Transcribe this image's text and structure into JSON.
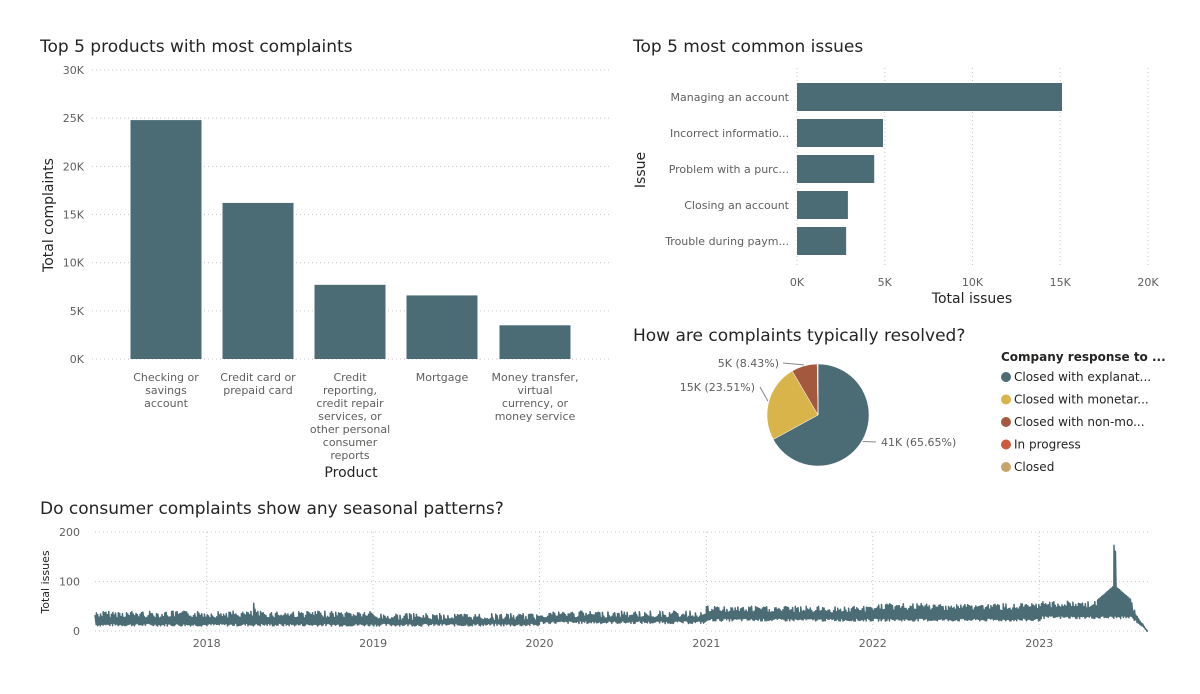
{
  "charts": {
    "products": {
      "title": "Top 5 products with most complaints",
      "xlabel": "Product",
      "ylabel": "Total complaints",
      "yticks": [
        "30K",
        "25K",
        "20K",
        "15K",
        "10K",
        "5K",
        "0K"
      ],
      "category_lines": [
        [
          "Checking or",
          "savings",
          "account"
        ],
        [
          "Credit card or",
          "prepaid card"
        ],
        [
          "Credit",
          "reporting,",
          "credit repair",
          "services, or",
          "other personal",
          "consumer",
          "reports"
        ],
        [
          "Mortgage"
        ],
        [
          "Money transfer,",
          "virtual",
          "currency, or",
          "money service"
        ]
      ],
      "bar_color": "#4c6c75"
    },
    "issues": {
      "title": "Top 5 most common issues",
      "xlabel": "Total issues",
      "ylabel": "Issue",
      "xticks": [
        "0K",
        "5K",
        "10K",
        "15K",
        "20K"
      ],
      "bar_color": "#4c6c75"
    },
    "resolution": {
      "title": "How are complaints typically resolved?",
      "legend_title": "Company response to ...",
      "legend_items": [
        {
          "label": "Closed with explanat...",
          "color": "#4c6c75"
        },
        {
          "label": "Closed with monetar...",
          "color": "#d9b44a"
        },
        {
          "label": "Closed with non-mo...",
          "color": "#a4583e"
        },
        {
          "label": "In progress",
          "color": "#cc5a3d"
        },
        {
          "label": "Closed",
          "color": "#c7a56a"
        }
      ],
      "slice_labels": [
        "41K (65.65%)",
        "15K (23.51%)",
        "5K (8.43%)"
      ]
    },
    "seasonal": {
      "title": "Do consumer complaints show any seasonal patterns?",
      "ylabel": "Total issues",
      "yticks": [
        "200",
        "100",
        "0"
      ],
      "xticks": [
        "2018",
        "2019",
        "2020",
        "2021",
        "2022",
        "2023"
      ],
      "line_color": "#4c6c75"
    }
  },
  "chart_data": [
    {
      "type": "bar",
      "title": "Top 5 products with most complaints",
      "categories": [
        "Checking or savings account",
        "Credit card or prepaid card",
        "Credit reporting, credit repair services, or other personal consumer reports",
        "Mortgage",
        "Money transfer, virtual currency, or money service"
      ],
      "values": [
        24800,
        16200,
        7700,
        6600,
        3500
      ],
      "xlabel": "Product",
      "ylabel": "Total complaints",
      "ylim": [
        0,
        30000
      ],
      "grid": true
    },
    {
      "type": "bar",
      "orientation": "horizontal",
      "title": "Top 5 most common issues",
      "categories": [
        "Managing an account",
        "Incorrect informatio...",
        "Problem with a purc...",
        "Closing an account",
        "Trouble during paym..."
      ],
      "values": [
        15100,
        4900,
        4400,
        2900,
        2800
      ],
      "xlabel": "Total issues",
      "ylabel": "Issue",
      "xlim": [
        0,
        20000
      ],
      "grid": true
    },
    {
      "type": "pie",
      "title": "How are complaints typically resolved?",
      "categories": [
        "Closed with explanat...",
        "Closed with monetar...",
        "Closed with non-mo...",
        "In progress",
        "Closed"
      ],
      "values": [
        41000,
        15000,
        5000,
        100,
        60
      ],
      "percentages": [
        65.65,
        23.51,
        8.43,
        0.16,
        0.1
      ],
      "legend": "right"
    },
    {
      "type": "line",
      "title": "Do consumer complaints show any seasonal patterns?",
      "ylabel": "Total issues",
      "xlabel": "",
      "x_range": [
        "2017-05-01",
        "2023-09-01"
      ],
      "ylim": [
        0,
        200
      ],
      "frequency": "daily",
      "typical_range_by_year": {
        "2017": [
          10,
          40
        ],
        "2018": [
          10,
          40
        ],
        "2019": [
          10,
          35
        ],
        "2020": [
          15,
          40
        ],
        "2021": [
          20,
          50
        ],
        "2022": [
          20,
          55
        ],
        "2023": [
          25,
          60
        ]
      },
      "peaks": [
        {
          "x": "2018-04",
          "y": 68
        },
        {
          "x": "2023-06-15",
          "y": 185
        }
      ],
      "grid": true
    }
  ]
}
